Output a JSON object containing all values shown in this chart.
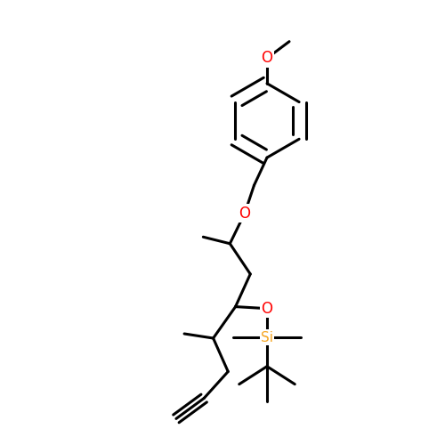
{
  "bg_color": "#ffffff",
  "bond_color": "#000000",
  "o_color": "#ff0000",
  "si_color": "#f5a623",
  "bond_width": 2.2,
  "figsize": [
    5.0,
    5.0
  ],
  "dpi": 100,
  "xlim": [
    -0.1,
    1.1
  ],
  "ylim": [
    -0.05,
    1.05
  ]
}
